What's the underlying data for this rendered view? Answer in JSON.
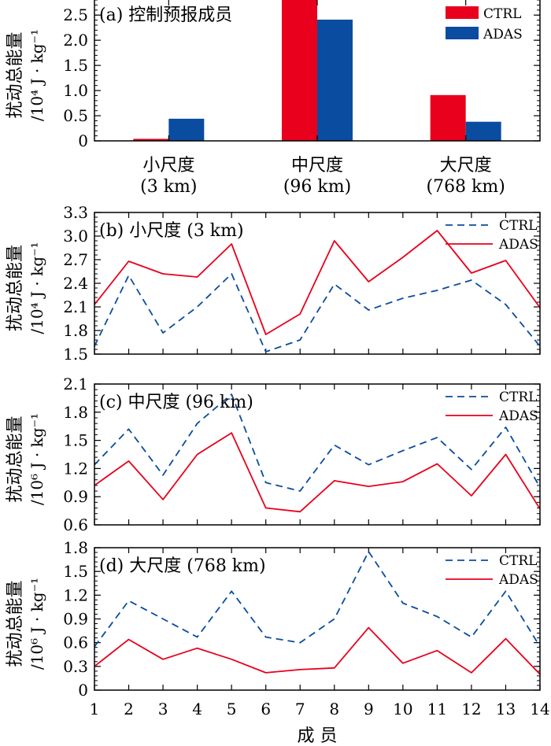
{
  "chart_data": [
    {
      "type": "bar",
      "title": "(a) 控制预报成员",
      "ylabel": "扰动总能量",
      "yunit": "/10⁴ J · kg⁻¹",
      "categories": [
        "小尺度",
        "中尺度",
        "大尺度"
      ],
      "category_sublabels": [
        "(3  km)",
        "(96  km)",
        "(768  km)"
      ],
      "ylim": [
        0,
        2.8
      ],
      "yticks": [
        "0",
        "0.5",
        "1.0",
        "1.5",
        "2.0",
        "2.5"
      ],
      "legend_position": "top-right",
      "series": [
        {
          "name": "CTRL",
          "color": "#e8001c",
          "values": [
            0.04,
            3.0,
            0.91
          ]
        },
        {
          "name": "ADAS",
          "color": "#0a4ca0",
          "values": [
            0.44,
            2.41,
            0.38
          ]
        }
      ]
    },
    {
      "type": "line",
      "title": "(b) 小尺度 (3  km)",
      "ylabel": "扰动总能量",
      "yunit": "/10⁴ J · kg⁻¹",
      "ylim": [
        1.5,
        3.3
      ],
      "yticks": [
        "1.5",
        "1.8",
        "2.1",
        "2.4",
        "2.7",
        "3.0",
        "3.3"
      ],
      "x": [
        1,
        2,
        3,
        4,
        5,
        6,
        7,
        8,
        9,
        10,
        11,
        12,
        13,
        14
      ],
      "legend_position": "top-right",
      "series": [
        {
          "name": "CTRL",
          "color": "#0a4ca0",
          "style": "dashed",
          "values": [
            1.6,
            2.5,
            1.77,
            2.1,
            2.52,
            1.53,
            1.68,
            2.39,
            2.06,
            2.21,
            2.31,
            2.44,
            2.13,
            1.6
          ]
        },
        {
          "name": "ADAS",
          "color": "#e8001c",
          "style": "solid",
          "values": [
            2.13,
            2.68,
            2.52,
            2.48,
            2.9,
            1.75,
            2.01,
            2.94,
            2.42,
            2.73,
            3.07,
            2.53,
            2.69,
            2.09
          ]
        }
      ]
    },
    {
      "type": "line",
      "title": "(c) 中尺度 (96  km)",
      "ylabel": "扰动总能量",
      "yunit": "/10⁶ J · kg⁻¹",
      "ylim": [
        0.6,
        2.1
      ],
      "yticks": [
        "0.6",
        "0.9",
        "1.2",
        "1.5",
        "1.8",
        "2.1"
      ],
      "x": [
        1,
        2,
        3,
        4,
        5,
        6,
        7,
        8,
        9,
        10,
        11,
        12,
        13,
        14
      ],
      "legend_position": "top-right",
      "series": [
        {
          "name": "CTRL",
          "color": "#0a4ca0",
          "style": "dashed",
          "values": [
            1.24,
            1.62,
            1.13,
            1.68,
            1.99,
            1.05,
            0.96,
            1.45,
            1.24,
            1.39,
            1.53,
            1.19,
            1.64,
            1.0
          ]
        },
        {
          "name": "ADAS",
          "color": "#e8001c",
          "style": "solid",
          "values": [
            1.02,
            1.28,
            0.87,
            1.35,
            1.58,
            0.78,
            0.74,
            1.07,
            1.01,
            1.06,
            1.25,
            0.91,
            1.35,
            0.77
          ]
        }
      ]
    },
    {
      "type": "line",
      "title": "(d) 大尺度 (768  km)",
      "ylabel": "扰动总能量",
      "yunit": "/10⁶ J · kg⁻¹",
      "ylim": [
        0,
        1.8
      ],
      "yticks": [
        "0",
        "0.3",
        "0.6",
        "0.9",
        "1.2",
        "1.5",
        "1.8"
      ],
      "x": [
        1,
        2,
        3,
        4,
        5,
        6,
        7,
        8,
        9,
        10,
        11,
        12,
        13,
        14
      ],
      "xlabel": "成   员",
      "legend_position": "top-right",
      "series": [
        {
          "name": "CTRL",
          "color": "#0a4ca0",
          "style": "dashed",
          "values": [
            0.55,
            1.13,
            0.9,
            0.67,
            1.25,
            0.67,
            0.6,
            0.9,
            1.75,
            1.1,
            0.93,
            0.67,
            1.25,
            0.55
          ]
        },
        {
          "name": "ADAS",
          "color": "#e8001c",
          "style": "solid",
          "values": [
            0.3,
            0.64,
            0.39,
            0.53,
            0.39,
            0.22,
            0.26,
            0.28,
            0.79,
            0.34,
            0.5,
            0.22,
            0.65,
            0.2
          ]
        }
      ]
    }
  ]
}
